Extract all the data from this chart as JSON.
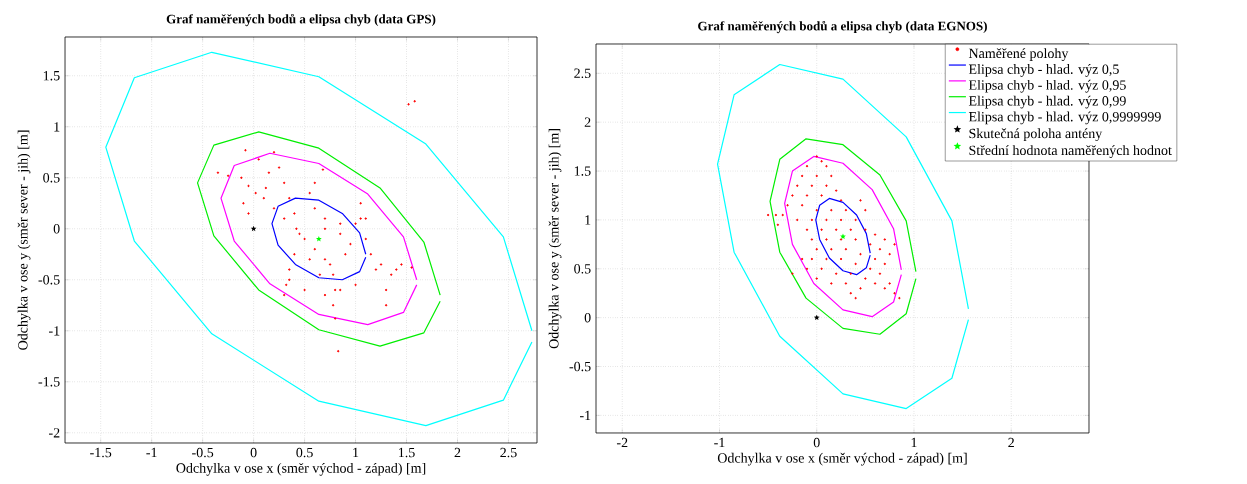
{
  "chart_data": [
    {
      "type": "scatter",
      "title": "Graf naměřených bodů a elipsa chyb (data GPS)",
      "xlabel": "Odchylka v ose x (směr východ - západ) [m]",
      "ylabel": "Odchylka v ose y (směr sever - jih) [m]",
      "xlim": [
        -1.85,
        2.78
      ],
      "ylim": [
        -2.1,
        1.88
      ],
      "xticks": [
        -1.5,
        -1,
        -0.5,
        0,
        0.5,
        1,
        1.5,
        2,
        2.5
      ],
      "yticks": [
        -2,
        -1.5,
        -1,
        -0.5,
        0,
        0.5,
        1,
        1.5
      ],
      "grid": true,
      "series": [
        {
          "type": "scatter",
          "marker": "circle",
          "color": "#ff0000",
          "x": [
            -0.35,
            -0.25,
            -0.12,
            -0.05,
            0.02,
            0.1,
            0.2,
            0.3,
            0.42,
            0.5,
            0.6,
            0.7,
            0.78,
            0.8,
            0.78,
            0.8,
            -0.08,
            0.05,
            0.15,
            0.12,
            0.2,
            0.25,
            0.3,
            0.35,
            0.4,
            0.45,
            0.4,
            0.35,
            0.32,
            0.3,
            0.68,
            0.6,
            0.55,
            0.6,
            0.7,
            0.85,
            1.0,
            1.1,
            1.05,
            1.05,
            1.1,
            1.15,
            1.2,
            1.25,
            1.4,
            1.55,
            1.45,
            1.35,
            1.3,
            1.3,
            0.35,
            0.5,
            0.7,
            0.85,
            1.0,
            0.55,
            0.65,
            0.75,
            0.9,
            0.95,
            0.85,
            0.7,
            -0.1,
            -0.05,
            1.52,
            1.58,
            0.83
          ],
          "values": [
            0.55,
            0.52,
            0.5,
            0.42,
            0.35,
            0.3,
            0.2,
            0.1,
            0.0,
            -0.1,
            -0.2,
            -0.3,
            -0.45,
            -0.6,
            -0.75,
            -0.88,
            0.77,
            0.68,
            0.55,
            0.4,
            0.75,
            0.6,
            0.45,
            0.3,
            0.15,
            -0.05,
            -0.25,
            -0.4,
            -0.55,
            -0.65,
            0.58,
            0.45,
            0.35,
            0.2,
            0.1,
            0.05,
            0.05,
            0.1,
            0.25,
            0.1,
            -0.1,
            -0.25,
            -0.4,
            -0.35,
            -0.4,
            -0.38,
            -0.35,
            -0.45,
            -0.6,
            -0.75,
            -0.5,
            -0.6,
            -0.65,
            -0.6,
            -0.55,
            -0.3,
            -0.45,
            -0.35,
            -0.25,
            -0.15,
            -0.05,
            0.0,
            0.25,
            0.15,
            1.22,
            1.25,
            -1.2
          ]
        },
        {
          "type": "line",
          "marker": "none",
          "color": "#0000ff",
          "x": [
            1.1,
            1.04,
            0.87,
            0.64,
            0.41,
            0.24,
            0.18,
            0.24,
            0.41,
            0.64,
            0.87,
            1.04,
            1.1
          ],
          "values": [
            -0.25,
            -0.04,
            0.15,
            0.28,
            0.3,
            0.22,
            0.05,
            -0.16,
            -0.35,
            -0.48,
            -0.5,
            -0.42,
            -0.28
          ]
        },
        {
          "type": "line",
          "marker": "none",
          "color": "#ff00ff",
          "x": [
            1.6,
            1.47,
            1.12,
            0.64,
            0.16,
            -0.19,
            -0.32,
            -0.19,
            0.16,
            0.64,
            1.12,
            1.47,
            1.6
          ],
          "values": [
            -0.5,
            -0.08,
            0.34,
            0.64,
            0.74,
            0.62,
            0.3,
            -0.12,
            -0.54,
            -0.84,
            -0.94,
            -0.82,
            -0.55
          ]
        },
        {
          "type": "line",
          "marker": "none",
          "color": "#00ee00",
          "x": [
            1.83,
            1.67,
            1.24,
            0.64,
            0.05,
            -0.39,
            -0.55,
            -0.39,
            0.05,
            0.64,
            1.24,
            1.67,
            1.83
          ],
          "values": [
            -0.65,
            -0.13,
            0.4,
            0.79,
            0.95,
            0.82,
            0.45,
            -0.07,
            -0.6,
            -0.99,
            -1.15,
            -1.02,
            -0.71
          ]
        },
        {
          "type": "line",
          "marker": "none",
          "color": "#00ffff",
          "x": [
            2.73,
            2.45,
            1.69,
            0.64,
            -0.41,
            -1.17,
            -1.45,
            -1.17,
            -0.41,
            0.64,
            1.69,
            2.45,
            2.73
          ],
          "values": [
            -1.0,
            -0.08,
            0.83,
            1.49,
            1.73,
            1.48,
            0.8,
            -0.12,
            -1.03,
            -1.69,
            -1.93,
            -1.68,
            -1.11
          ]
        },
        {
          "type": "scatter",
          "marker": "star",
          "color": "#000000",
          "x": [
            0
          ],
          "values": [
            0
          ]
        },
        {
          "type": "scatter",
          "marker": "star",
          "color": "#00ff00",
          "x": [
            0.64
          ],
          "values": [
            -0.1
          ]
        }
      ]
    },
    {
      "type": "scatter",
      "title": "Graf naměřených bodů a elipsa chyb (data EGNOS)",
      "xlabel": "Odchylka v ose x (směr východ - západ) [m]",
      "ylabel": "Odchylka v ose y (směr sever - jih) [m]",
      "xlim": [
        -2.27,
        2.8
      ],
      "ylim": [
        -1.18,
        2.8
      ],
      "xticks": [
        -2,
        -1,
        0,
        1,
        2
      ],
      "yticks": [
        -1,
        -0.5,
        0,
        0.5,
        1,
        1.5,
        2,
        2.5
      ],
      "grid": true,
      "legend": "top right",
      "series": [
        {
          "name": "Naměřené polohy",
          "type": "scatter",
          "marker": "circle",
          "color": "#ff0000",
          "x": [
            0.0,
            0.05,
            -0.1,
            0.1,
            -0.15,
            0.0,
            0.15,
            -0.2,
            -0.05,
            0.1,
            0.2,
            -0.25,
            -0.1,
            0.05,
            0.25,
            -0.3,
            -0.15,
            0.0,
            0.15,
            0.3,
            -0.35,
            -0.2,
            -0.05,
            0.1,
            0.25,
            0.4,
            -0.1,
            0.05,
            0.2,
            0.35,
            0.5,
            0.6,
            0.7,
            0.8,
            -0.05,
            0.1,
            0.25,
            0.4,
            0.55,
            0.65,
            0.75,
            0.0,
            0.15,
            0.3,
            0.45,
            0.6,
            0.7,
            -0.15,
            -0.05,
            0.1,
            0.25,
            0.4,
            0.55,
            0.65,
            -0.1,
            0.05,
            0.2,
            0.35,
            0.5,
            0.6,
            0.75,
            0.0,
            0.15,
            0.3,
            0.45,
            0.7,
            0.8,
            0.85,
            0.35,
            0.4,
            -0.5,
            -0.42,
            -0.4,
            -0.25,
            0.5,
            0.45
          ],
          "values": [
            1.65,
            1.6,
            1.55,
            1.55,
            1.45,
            1.45,
            1.45,
            1.35,
            1.35,
            1.35,
            1.3,
            1.25,
            1.25,
            1.25,
            1.2,
            1.15,
            1.15,
            1.1,
            1.1,
            1.1,
            1.05,
            1.0,
            1.0,
            1.0,
            1.0,
            1.0,
            0.9,
            0.9,
            0.9,
            0.9,
            0.9,
            0.85,
            0.8,
            0.75,
            0.8,
            0.8,
            0.8,
            0.8,
            0.75,
            0.7,
            0.65,
            0.7,
            0.7,
            0.7,
            0.65,
            0.6,
            0.55,
            0.6,
            0.6,
            0.6,
            0.6,
            0.55,
            0.5,
            0.45,
            0.5,
            0.5,
            0.45,
            0.45,
            0.4,
            0.35,
            0.35,
            0.4,
            0.35,
            0.35,
            0.3,
            0.3,
            0.25,
            0.2,
            0.25,
            0.2,
            1.05,
            1.05,
            0.95,
            0.45,
            1.1,
            1.2
          ]
        },
        {
          "name": "Elipsa chyb - hlad. výz 0,5",
          "type": "line",
          "marker": "none",
          "color": "#0000ff",
          "x": [
            0.55,
            0.51,
            0.41,
            0.27,
            0.13,
            0.03,
            -0.01,
            0.03,
            0.13,
            0.27,
            0.41,
            0.51,
            0.55
          ],
          "values": [
            0.66,
            0.86,
            1.05,
            1.18,
            1.22,
            1.15,
            1.0,
            0.8,
            0.61,
            0.48,
            0.44,
            0.51,
            0.64
          ]
        },
        {
          "name": "Elipsa chyb - hlad. výz 0,95",
          "type": "line",
          "marker": "none",
          "color": "#ff00ff",
          "x": [
            0.87,
            0.79,
            0.57,
            0.27,
            -0.03,
            -0.25,
            -0.33,
            -0.25,
            -0.03,
            0.27,
            0.57,
            0.79,
            0.87
          ],
          "values": [
            0.49,
            0.91,
            1.31,
            1.58,
            1.65,
            1.5,
            1.17,
            0.75,
            0.35,
            0.08,
            0.01,
            0.16,
            0.44
          ]
        },
        {
          "name": "Elipsa chyb - hlad. výz 0,99",
          "type": "line",
          "marker": "none",
          "color": "#00ee00",
          "x": [
            1.02,
            0.92,
            0.65,
            0.27,
            -0.11,
            -0.38,
            -0.48,
            -0.38,
            -0.11,
            0.27,
            0.65,
            0.92,
            1.02
          ],
          "values": [
            0.47,
            0.99,
            1.46,
            1.77,
            1.83,
            1.62,
            1.19,
            0.67,
            0.2,
            -0.11,
            -0.17,
            0.04,
            0.4
          ]
        },
        {
          "name": "Elipsa chyb - hlad. výz 0,9999999",
          "type": "line",
          "marker": "none",
          "color": "#00ffff",
          "x": [
            1.56,
            1.39,
            0.92,
            0.27,
            -0.38,
            -0.85,
            -1.02,
            -0.85,
            -0.38,
            0.27,
            0.92,
            1.39,
            1.56
          ],
          "values": [
            0.09,
            0.99,
            1.85,
            2.44,
            2.59,
            2.28,
            1.57,
            0.67,
            -0.19,
            -0.78,
            -0.93,
            -0.62,
            -0.02
          ]
        },
        {
          "name": "Skutečná poloha antény",
          "type": "scatter",
          "marker": "star",
          "color": "#000000",
          "x": [
            0
          ],
          "values": [
            0
          ]
        },
        {
          "name": "Střední hodnota naměřených hodnot",
          "type": "scatter",
          "marker": "star",
          "color": "#00ff00",
          "x": [
            0.27
          ],
          "values": [
            0.83
          ]
        }
      ]
    }
  ]
}
